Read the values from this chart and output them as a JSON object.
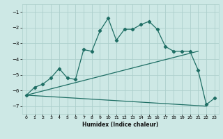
{
  "xlabel": "Humidex (Indice chaleur)",
  "ylabel": "",
  "background_color": "#cde8e5",
  "grid_color": "#add0cc",
  "line_color": "#1e6e64",
  "xlim": [
    -0.5,
    23.5
  ],
  "ylim": [
    -7.5,
    -0.5
  ],
  "yticks": [
    -7,
    -6,
    -5,
    -4,
    -3,
    -2,
    -1
  ],
  "xticks": [
    0,
    1,
    2,
    3,
    4,
    5,
    6,
    7,
    8,
    9,
    10,
    11,
    12,
    13,
    14,
    15,
    16,
    17,
    18,
    19,
    20,
    21,
    22,
    23
  ],
  "series_main": {
    "x": [
      0,
      1,
      2,
      3,
      4,
      5,
      6,
      7,
      8,
      9,
      10,
      11,
      12,
      13,
      14,
      15,
      16,
      17,
      18,
      19,
      20,
      21,
      22,
      23
    ],
    "y": [
      -6.3,
      -5.8,
      -5.6,
      -5.2,
      -4.6,
      -5.2,
      -5.3,
      -3.4,
      -3.5,
      -2.2,
      -1.4,
      -2.8,
      -2.1,
      -2.1,
      -1.8,
      -1.6,
      -2.1,
      -3.2,
      -3.5,
      -3.5,
      -3.5,
      -4.7,
      -6.9,
      -6.5
    ]
  },
  "series_upper": {
    "x": [
      0,
      21
    ],
    "y": [
      -6.3,
      -3.5
    ]
  },
  "series_lower": {
    "x": [
      0,
      22
    ],
    "y": [
      -6.3,
      -7.0
    ]
  }
}
